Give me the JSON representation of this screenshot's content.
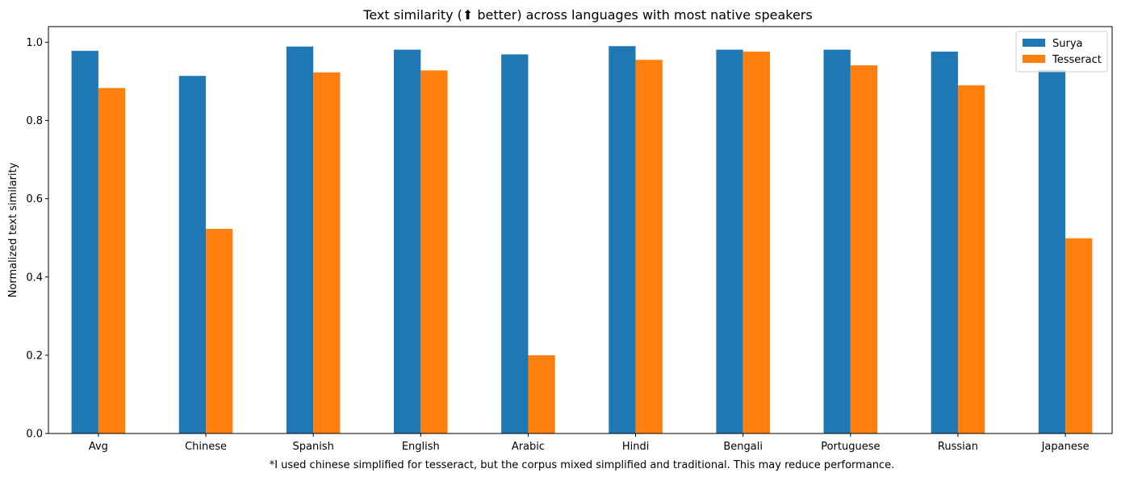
{
  "chart_data": {
    "type": "bar",
    "title": "Text similarity (⬆ better) across languages with most native speakers",
    "xlabel": "*I used chinese simplified for tesseract, but the corpus mixed simplified and traditional.  This may reduce performance.",
    "ylabel": "Normalized text similarity",
    "ylim": [
      0,
      1.04
    ],
    "yticks": [
      "0.0",
      "0.2",
      "0.4",
      "0.6",
      "0.8",
      "1.0"
    ],
    "categories": [
      "Avg",
      "Chinese",
      "Spanish",
      "English",
      "Arabic",
      "Hindi",
      "Bengali",
      "Portuguese",
      "Russian",
      "Japanese"
    ],
    "series": [
      {
        "name": "Surya",
        "color": "#1f77b4",
        "values": [
          0.978,
          0.914,
          0.989,
          0.981,
          0.969,
          0.99,
          0.981,
          0.981,
          0.976,
          0.929
        ]
      },
      {
        "name": "Tesseract",
        "color": "#ff7f0e",
        "values": [
          0.883,
          0.523,
          0.923,
          0.928,
          0.2,
          0.955,
          0.976,
          0.941,
          0.89,
          0.499
        ]
      }
    ],
    "legend_position": "top-right",
    "grid": false
  }
}
